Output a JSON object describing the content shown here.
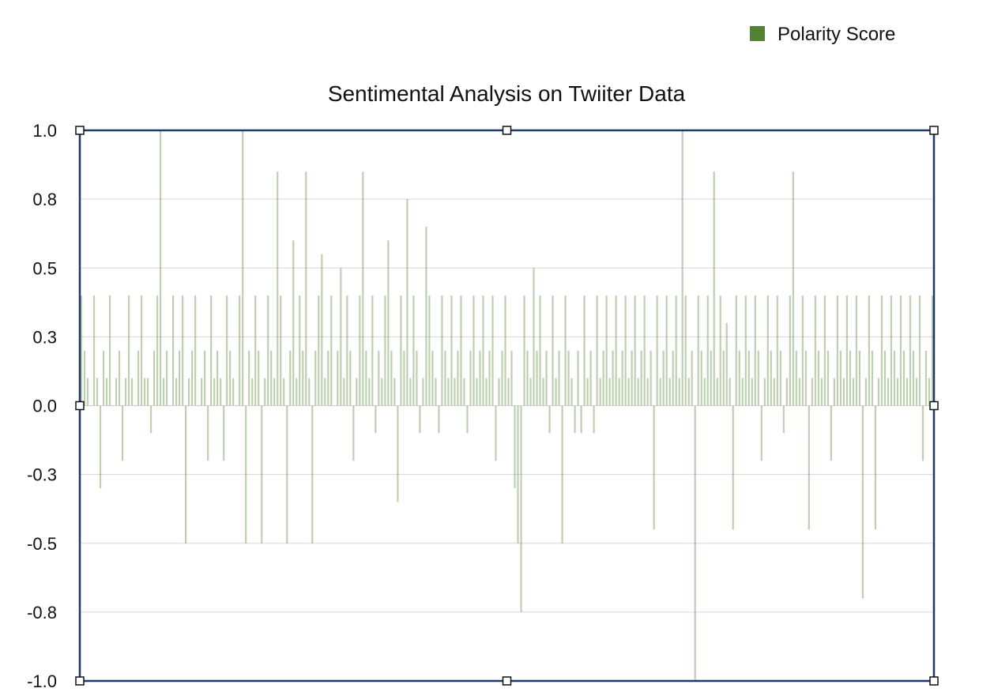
{
  "chart_data": {
    "type": "bar",
    "title": "Sentimental Analysis on Twiiter Data",
    "xlabel": "",
    "ylabel": "",
    "ylim": [
      -1.0,
      1.0
    ],
    "y_ticks": [
      1.0,
      0.75,
      0.5,
      0.25,
      0.0,
      -0.25,
      -0.5,
      -0.75,
      -1.0
    ],
    "y_tick_labels": [
      "1.0",
      "0.8",
      "0.5",
      "0.3",
      "0.0",
      "-0.3",
      "-0.5",
      "-0.8",
      "-1.0"
    ],
    "grid": true,
    "legend_placement": "top-right",
    "series": [
      {
        "name": "Polarity Score",
        "color": "#548235",
        "values": [
          0.4,
          0.2,
          0.1,
          0.0,
          0.4,
          0.1,
          -0.3,
          0.2,
          0.1,
          0.4,
          0.0,
          0.1,
          0.2,
          -0.2,
          0.1,
          0.4,
          0.1,
          0.0,
          0.2,
          0.4,
          0.1,
          0.1,
          -0.1,
          0.2,
          0.4,
          1.0,
          0.1,
          0.2,
          0.0,
          0.4,
          0.1,
          0.2,
          0.4,
          -0.5,
          0.1,
          0.2,
          0.4,
          0.0,
          0.1,
          0.2,
          -0.2,
          0.4,
          0.1,
          0.2,
          0.1,
          -0.2,
          0.4,
          0.2,
          0.1,
          0.0,
          0.4,
          1.0,
          -0.5,
          0.2,
          0.1,
          0.4,
          0.2,
          -0.5,
          0.1,
          0.4,
          0.2,
          0.1,
          0.85,
          0.4,
          0.1,
          -0.5,
          0.2,
          0.6,
          0.1,
          0.4,
          0.2,
          0.85,
          0.1,
          -0.5,
          0.2,
          0.4,
          0.55,
          0.1,
          0.2,
          0.4,
          0.0,
          0.2,
          0.5,
          0.1,
          0.4,
          0.2,
          -0.2,
          0.1,
          0.4,
          0.85,
          0.2,
          0.1,
          0.4,
          -0.1,
          0.2,
          0.1,
          0.4,
          0.6,
          0.2,
          0.1,
          -0.35,
          0.4,
          0.2,
          0.75,
          0.1,
          0.4,
          0.2,
          -0.1,
          0.1,
          0.65,
          0.4,
          0.2,
          0.1,
          -0.1,
          0.4,
          0.2,
          0.1,
          0.4,
          0.1,
          0.2,
          0.4,
          0.1,
          -0.1,
          0.2,
          0.4,
          0.1,
          0.2,
          0.4,
          0.1,
          0.2,
          0.4,
          -0.2,
          0.1,
          0.2,
          0.4,
          0.1,
          0.2,
          -0.3,
          -0.5,
          -0.75,
          0.4,
          0.2,
          0.1,
          0.5,
          0.2,
          0.4,
          0.1,
          0.2,
          -0.1,
          0.4,
          0.1,
          0.2,
          -0.5,
          0.4,
          0.2,
          0.1,
          -0.1,
          0.2,
          -0.1,
          0.4,
          0.1,
          0.2,
          -0.1,
          0.4,
          0.1,
          0.2,
          0.4,
          0.1,
          0.2,
          0.4,
          0.1,
          0.2,
          0.4,
          0.1,
          0.2,
          0.4,
          0.1,
          0.2,
          0.4,
          0.1,
          0.2,
          -0.45,
          0.4,
          0.1,
          0.2,
          0.4,
          0.1,
          0.2,
          0.4,
          0.1,
          1.0,
          0.4,
          0.1,
          0.2,
          -1.0,
          0.4,
          0.2,
          0.1,
          0.4,
          0.2,
          0.85,
          0.1,
          0.4,
          0.2,
          0.3,
          0.1,
          -0.45,
          0.4,
          0.2,
          0.1,
          0.4,
          0.2,
          0.1,
          0.4,
          0.2,
          -0.2,
          0.1,
          0.4,
          0.2,
          0.1,
          0.4,
          0.2,
          -0.1,
          0.1,
          0.4,
          0.85,
          0.2,
          0.1,
          0.4,
          0.2,
          -0.45,
          0.1,
          0.4,
          0.2,
          0.1,
          0.4,
          0.2,
          -0.2,
          0.1,
          0.4,
          0.2,
          0.1,
          0.4,
          0.2,
          0.1,
          0.4,
          0.2,
          -0.7,
          0.1,
          0.4,
          0.2,
          -0.45,
          0.1,
          0.4,
          0.2,
          0.1,
          0.4,
          0.2,
          0.1,
          0.4,
          0.2,
          0.1,
          0.4,
          0.2,
          0.1,
          0.4,
          -0.2,
          0.2,
          0.1,
          0.4
        ]
      }
    ]
  }
}
